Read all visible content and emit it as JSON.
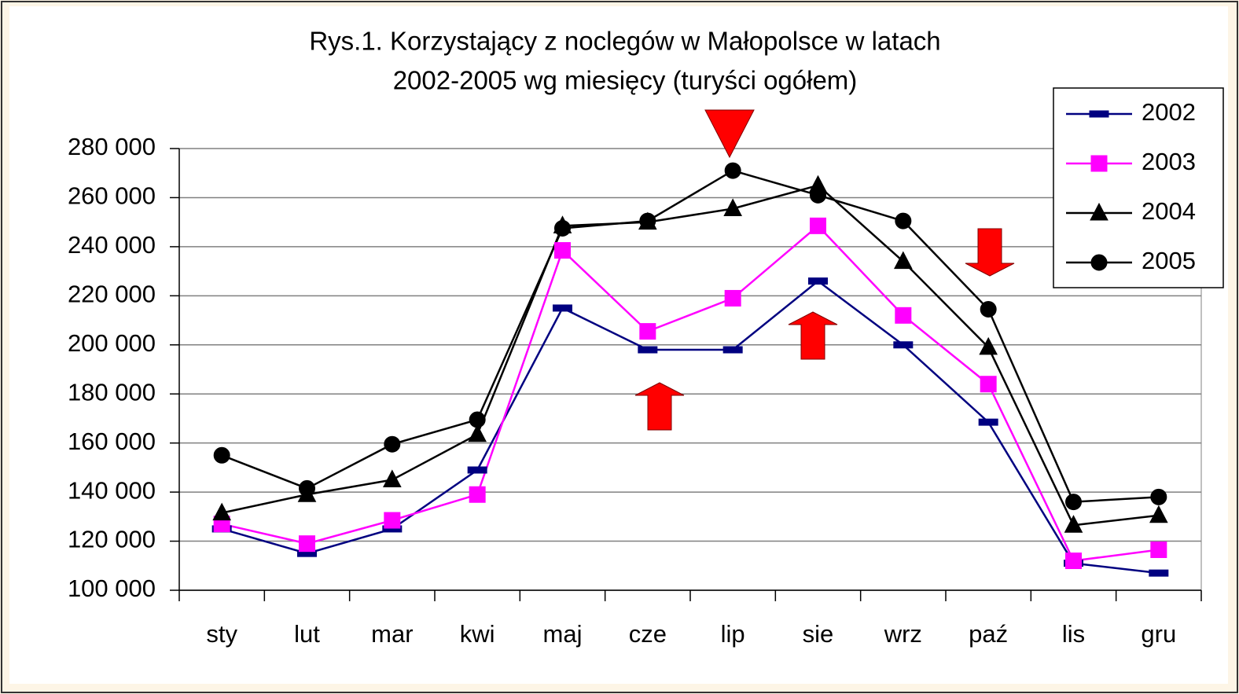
{
  "chart_data": {
    "type": "line",
    "title": [
      "Rys.1. Korzystający z noclegów w Małopolsce w latach",
      "2002-2005 wg miesięcy (turyści ogółem)"
    ],
    "categories": [
      "sty",
      "lut",
      "mar",
      "kwi",
      "maj",
      "cze",
      "lip",
      "sie",
      "wrz",
      "paź",
      "lis",
      "gru"
    ],
    "series": [
      {
        "name": "2002",
        "color": "#000080",
        "marker": "dash",
        "values": [
          125000,
          115000,
          125000,
          149000,
          215000,
          198000,
          198000,
          226000,
          200000,
          168500,
          111000,
          107000
        ]
      },
      {
        "name": "2003",
        "color": "#ff00ff",
        "marker": "square",
        "values": [
          127000,
          119000,
          128500,
          139000,
          238500,
          205500,
          219000,
          248500,
          212000,
          184000,
          112000,
          116500
        ]
      },
      {
        "name": "2004",
        "color": "#000000",
        "marker": "triangle",
        "values": [
          131500,
          139000,
          145000,
          163500,
          248500,
          250000,
          255500,
          265000,
          234000,
          199000,
          126500,
          130500
        ]
      },
      {
        "name": "2005",
        "color": "#000000",
        "marker": "circle",
        "values": [
          155000,
          141500,
          159500,
          169500,
          247500,
          250500,
          271000,
          261000,
          250500,
          214500,
          136000,
          138000
        ]
      }
    ],
    "ylim": [
      100000,
      280000
    ],
    "yticks": [
      {
        "value": 100000,
        "label": "100 000"
      },
      {
        "value": 120000,
        "label": "120 000"
      },
      {
        "value": 140000,
        "label": "140 000"
      },
      {
        "value": 160000,
        "label": "160 000"
      },
      {
        "value": 180000,
        "label": "180 000"
      },
      {
        "value": 200000,
        "label": "200 000"
      },
      {
        "value": 220000,
        "label": "220 000"
      },
      {
        "value": 240000,
        "label": "240 000"
      },
      {
        "value": 260000,
        "label": "260 000"
      },
      {
        "value": 280000,
        "label": "280 000"
      }
    ],
    "grid": true,
    "legend": "top-right"
  }
}
